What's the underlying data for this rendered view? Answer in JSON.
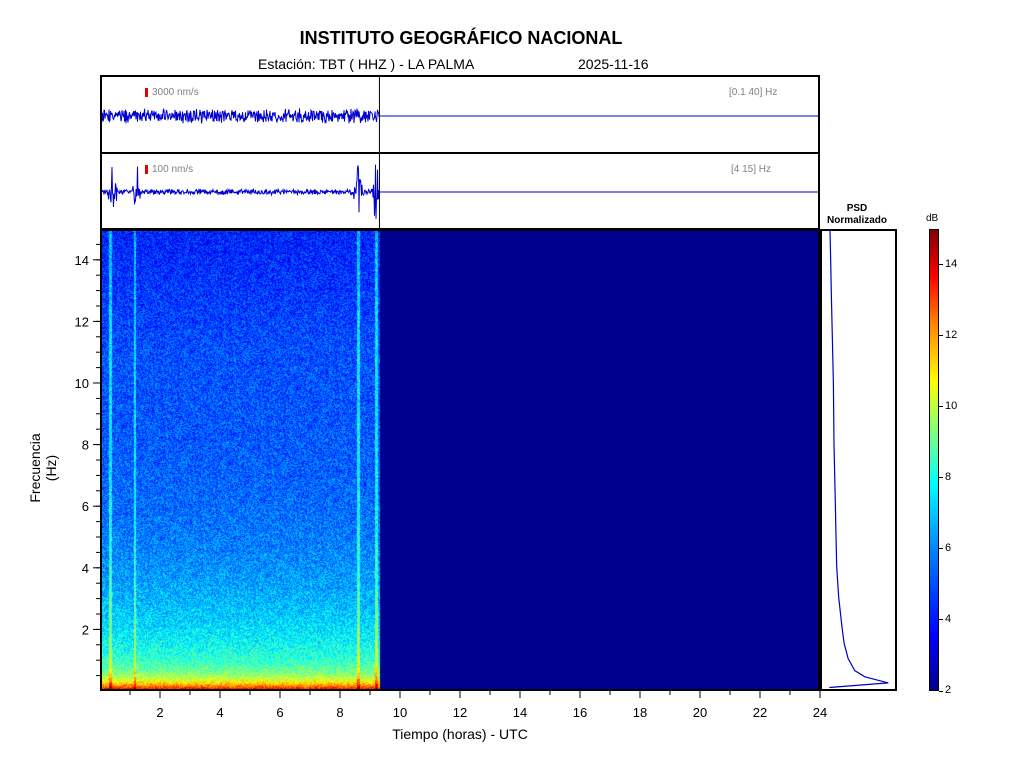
{
  "header": {
    "title": "INSTITUTO GEOGRÁFICO NACIONAL",
    "station_text": "Estación:  TBT ( HHZ ) - LA PALMA",
    "date_text": "2025-11-16"
  },
  "trace_top": {
    "scale_label": "3000 nm/s",
    "band_label": "[0.1 40] Hz",
    "data_end_hour": 9.3
  },
  "trace_bottom": {
    "scale_label": "100 nm/s",
    "band_label": "[4 15] Hz",
    "data_end_hour": 9.3,
    "event_hours": [
      0.35,
      1.15,
      8.6,
      9.2
    ]
  },
  "chart_data": {
    "type": "heatmap",
    "xlabel": "Tiempo (horas) - UTC",
    "ylabel": "Frecuencia  (Hz)",
    "xlim": [
      0,
      24
    ],
    "ylim": [
      0,
      15
    ],
    "xticks": [
      2,
      4,
      6,
      8,
      10,
      12,
      14,
      16,
      18,
      20,
      22,
      24
    ],
    "yticks": [
      2,
      4,
      6,
      8,
      10,
      12,
      14
    ],
    "data_end_hour": 9.3,
    "event_hours": [
      0.35,
      1.15,
      8.6,
      9.2
    ],
    "colorbar": {
      "unit": "dB",
      "range": [
        2,
        15
      ],
      "ticks": [
        2,
        4,
        6,
        8,
        10,
        12,
        14
      ]
    },
    "psd": {
      "title_line1": "PSD",
      "title_line2": "Normalizado",
      "freq": [
        0.05,
        0.2,
        0.4,
        0.6,
        1,
        1.5,
        2,
        3,
        4,
        5,
        6,
        7,
        8,
        9,
        10,
        11,
        12,
        13,
        14,
        15
      ],
      "value": [
        0.02,
        0.9,
        0.55,
        0.4,
        0.3,
        0.24,
        0.21,
        0.16,
        0.13,
        0.12,
        0.11,
        0.1,
        0.09,
        0.085,
        0.08,
        0.07,
        0.06,
        0.05,
        0.04,
        0.03
      ]
    }
  }
}
